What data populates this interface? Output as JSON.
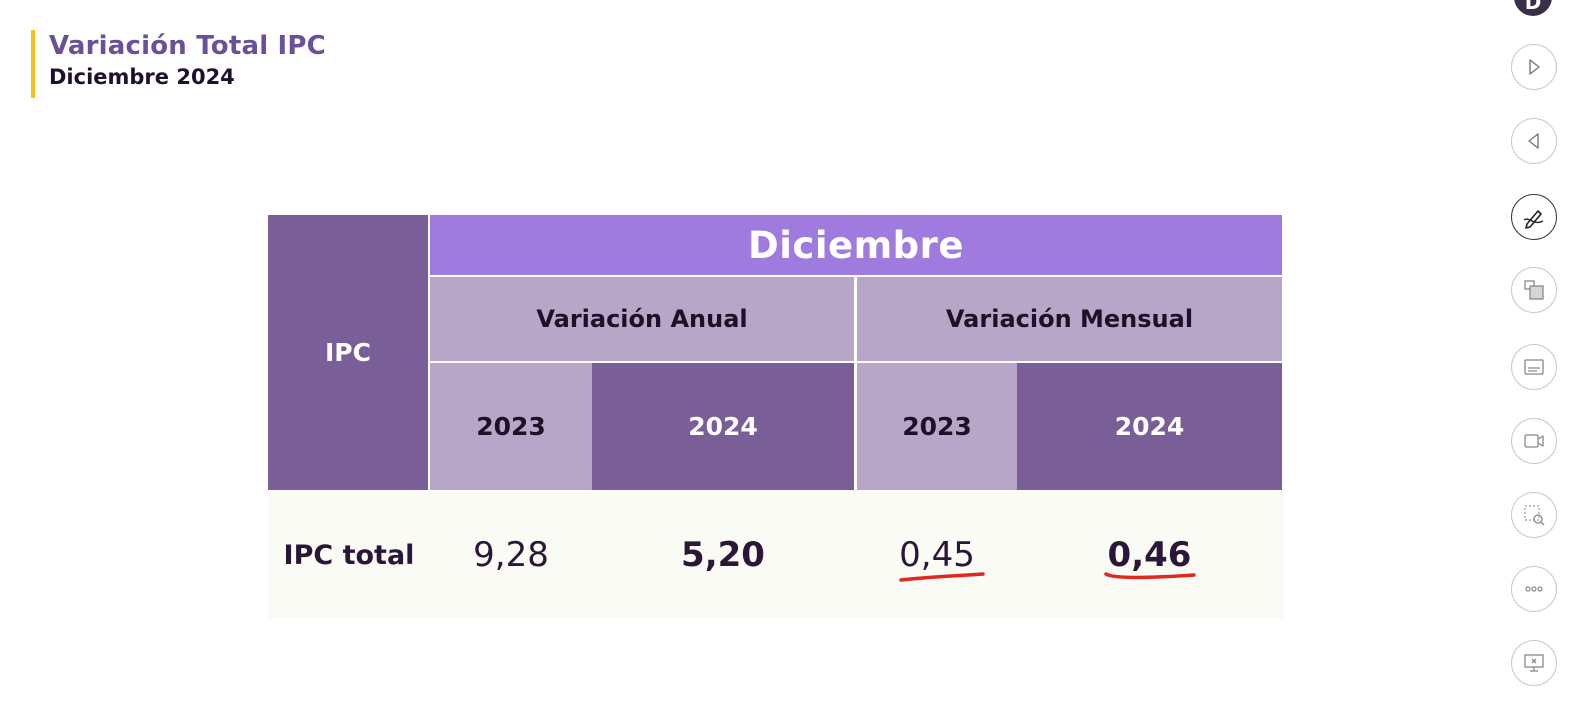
{
  "slide": {
    "title": "Variación Total IPC",
    "subtitle": "Diciembre 2024",
    "accent_color": "#f2c318"
  },
  "table": {
    "corner_label": "IPC",
    "month_header": "Diciembre",
    "groups": [
      "Variación Anual",
      "Variación Mensual"
    ],
    "years": [
      "2023",
      "2024",
      "2023",
      "2024"
    ],
    "rows": [
      {
        "label": "IPC total",
        "values": [
          "9,28",
          "5,20",
          "0,45",
          "0,46"
        ]
      }
    ],
    "colors": {
      "dark_purple": "#7a5e98",
      "light_purple": "#b8a6c9",
      "header_purple": "#9f7be0",
      "annotation_red": "#e0281e"
    }
  },
  "toolbar": {
    "avatar_initial": "D",
    "buttons": [
      "next-icon",
      "previous-icon",
      "pen-icon",
      "all-slides-icon",
      "subtitles-icon",
      "camera-icon",
      "zoom-icon",
      "more-options-icon",
      "end-show-icon"
    ]
  }
}
